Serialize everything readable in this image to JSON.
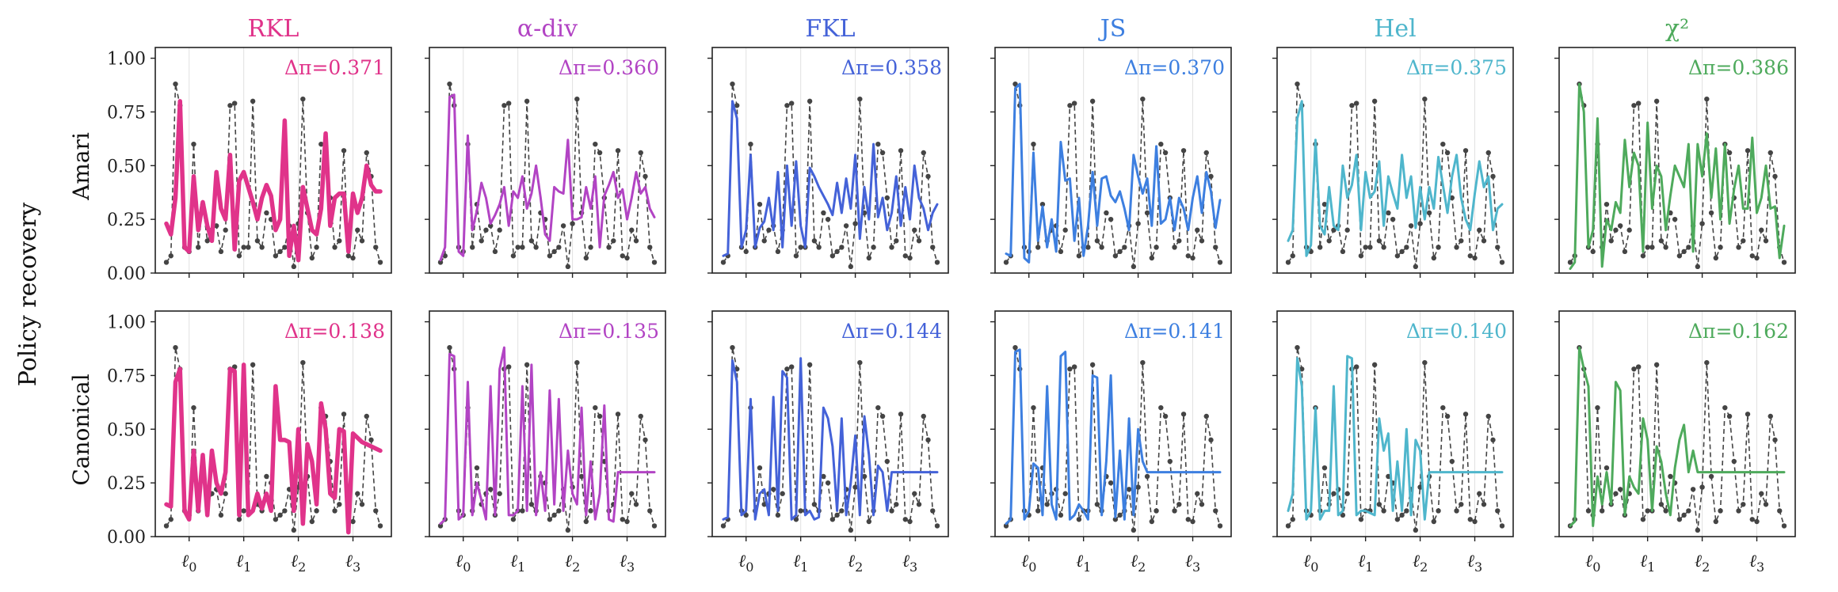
{
  "figure": {
    "ylabel": "Policy recovery",
    "row_labels": [
      "Amari",
      "Canonical"
    ],
    "yticks": [
      "0.00",
      "0.25",
      "0.50",
      "0.75",
      "1.00"
    ],
    "xticks": [
      {
        "base": "ℓ",
        "sub": "0"
      },
      {
        "base": "ℓ",
        "sub": "1"
      },
      {
        "base": "ℓ",
        "sub": "2"
      },
      {
        "base": "ℓ",
        "sub": "3"
      }
    ]
  },
  "columns": [
    {
      "title": "RKL",
      "color": "#e0338a",
      "width": 5.5
    },
    {
      "title": "α-div",
      "color": "#b244c4",
      "width": 3.0
    },
    {
      "title": "FKL",
      "color": "#4462d8",
      "width": 3.0
    },
    {
      "title": "JS",
      "color": "#3d7fe0",
      "width": 3.0
    },
    {
      "title": "Hel",
      "color": "#4fb6cc",
      "width": 3.0
    },
    {
      "title": "χ²",
      "color": "#4eaa5c",
      "width": 3.0
    }
  ],
  "chart_data": {
    "type": "line",
    "x": [
      0,
      1,
      2,
      3,
      4,
      5,
      6,
      7,
      8,
      9,
      10,
      11,
      12,
      13,
      14,
      15,
      16,
      17,
      18,
      19,
      20,
      21,
      22,
      23,
      24,
      25,
      26,
      27,
      28,
      29,
      30,
      31,
      32,
      33,
      34,
      35,
      36,
      37,
      38,
      39,
      40,
      41,
      42,
      43,
      44,
      45,
      46,
      47
    ],
    "x_tick_positions": [
      5,
      17,
      29,
      41
    ],
    "ylim": [
      0,
      1.05
    ],
    "reference": [
      0.05,
      0.08,
      0.88,
      0.78,
      0.12,
      0.1,
      0.6,
      0.12,
      0.32,
      0.15,
      0.2,
      0.22,
      0.1,
      0.2,
      0.78,
      0.79,
      0.08,
      0.12,
      0.12,
      0.8,
      0.15,
      0.12,
      0.28,
      0.25,
      0.08,
      0.1,
      0.12,
      0.22,
      0.03,
      0.23,
      0.81,
      0.28,
      0.07,
      0.12,
      0.6,
      0.56,
      0.35,
      0.12,
      0.15,
      0.57,
      0.08,
      0.07,
      0.2,
      0.15,
      0.56,
      0.45,
      0.12,
      0.05
    ],
    "panels": [
      {
        "row": "Amari",
        "column": "RKL",
        "delta": "Δπ=0.371",
        "values": [
          0.23,
          0.18,
          0.35,
          0.8,
          0.12,
          0.1,
          0.45,
          0.2,
          0.33,
          0.22,
          0.15,
          0.47,
          0.3,
          0.25,
          0.55,
          0.11,
          0.43,
          0.47,
          0.4,
          0.33,
          0.25,
          0.35,
          0.41,
          0.36,
          0.2,
          0.25,
          0.71,
          0.08,
          0.22,
          0.06,
          0.4,
          0.3,
          0.2,
          0.18,
          0.3,
          0.65,
          0.22,
          0.35,
          0.37,
          0.37,
          0.1,
          0.37,
          0.28,
          0.35,
          0.5,
          0.41,
          0.38,
          0.38
        ]
      },
      {
        "row": "Amari",
        "column": "α-div",
        "delta": "Δπ=0.360",
        "values": [
          0.06,
          0.12,
          0.82,
          0.83,
          0.1,
          0.08,
          0.64,
          0.2,
          0.29,
          0.42,
          0.35,
          0.23,
          0.27,
          0.32,
          0.4,
          0.22,
          0.38,
          0.35,
          0.45,
          0.3,
          0.37,
          0.5,
          0.35,
          0.18,
          0.15,
          0.4,
          0.38,
          0.37,
          0.62,
          0.25,
          0.25,
          0.26,
          0.4,
          0.3,
          0.45,
          0.12,
          0.36,
          0.41,
          0.47,
          0.35,
          0.39,
          0.25,
          0.35,
          0.47,
          0.37,
          0.4,
          0.3,
          0.26
        ]
      },
      {
        "row": "Amari",
        "column": "FKL",
        "delta": "Δπ=0.358",
        "values": [
          0.08,
          0.09,
          0.8,
          0.72,
          0.12,
          0.2,
          0.55,
          0.12,
          0.21,
          0.24,
          0.35,
          0.2,
          0.47,
          0.12,
          0.5,
          0.22,
          0.52,
          0.22,
          0.12,
          0.49,
          0.45,
          0.4,
          0.36,
          0.32,
          0.27,
          0.42,
          0.28,
          0.44,
          0.3,
          0.55,
          0.16,
          0.4,
          0.25,
          0.6,
          0.26,
          0.35,
          0.2,
          0.28,
          0.45,
          0.22,
          0.4,
          0.25,
          0.5,
          0.35,
          0.3,
          0.2,
          0.28,
          0.32
        ]
      },
      {
        "row": "Amari",
        "column": "JS",
        "delta": "Δπ=0.370",
        "values": [
          0.09,
          0.08,
          0.86,
          0.88,
          0.07,
          0.05,
          0.56,
          0.15,
          0.31,
          0.12,
          0.25,
          0.1,
          0.61,
          0.43,
          0.44,
          0.15,
          0.35,
          0.08,
          0.22,
          0.47,
          0.22,
          0.44,
          0.45,
          0.36,
          0.33,
          0.38,
          0.3,
          0.2,
          0.55,
          0.45,
          0.37,
          0.44,
          0.22,
          0.59,
          0.23,
          0.25,
          0.35,
          0.2,
          0.35,
          0.3,
          0.2,
          0.35,
          0.45,
          0.28,
          0.47,
          0.38,
          0.21,
          0.34
        ]
      },
      {
        "row": "Amari",
        "column": "Hel",
        "delta": "Δπ=0.375",
        "values": [
          0.15,
          0.2,
          0.72,
          0.8,
          0.08,
          0.13,
          0.62,
          0.22,
          0.18,
          0.4,
          0.22,
          0.2,
          0.5,
          0.35,
          0.41,
          0.55,
          0.2,
          0.47,
          0.35,
          0.38,
          0.52,
          0.22,
          0.45,
          0.37,
          0.3,
          0.55,
          0.35,
          0.45,
          0.21,
          0.4,
          0.25,
          0.4,
          0.3,
          0.54,
          0.41,
          0.28,
          0.45,
          0.55,
          0.35,
          0.25,
          0.2,
          0.37,
          0.52,
          0.4,
          0.45,
          0.2,
          0.3,
          0.32
        ]
      },
      {
        "row": "Amari",
        "column": "χ²",
        "delta": "Δπ=0.386",
        "values": [
          0.02,
          0.05,
          0.88,
          0.75,
          0.12,
          0.2,
          0.72,
          0.03,
          0.25,
          0.2,
          0.33,
          0.28,
          0.62,
          0.4,
          0.56,
          0.5,
          0.1,
          0.7,
          0.3,
          0.5,
          0.45,
          0.2,
          0.36,
          0.5,
          0.45,
          0.4,
          0.6,
          0.1,
          0.6,
          0.45,
          0.65,
          0.35,
          0.58,
          0.25,
          0.6,
          0.23,
          0.39,
          0.5,
          0.3,
          0.3,
          0.63,
          0.28,
          0.35,
          0.5,
          0.3,
          0.31,
          0.07,
          0.22
        ]
      },
      {
        "row": "Canonical",
        "column": "RKL",
        "delta": "Δπ=0.138",
        "values": [
          0.15,
          0.14,
          0.72,
          0.78,
          0.12,
          0.08,
          0.4,
          0.12,
          0.38,
          0.1,
          0.4,
          0.25,
          0.2,
          0.3,
          0.78,
          0.77,
          0.1,
          0.8,
          0.1,
          0.12,
          0.2,
          0.13,
          0.2,
          0.12,
          0.7,
          0.45,
          0.45,
          0.44,
          0.12,
          0.5,
          0.06,
          0.43,
          0.35,
          0.15,
          0.62,
          0.5,
          0.2,
          0.18,
          0.5,
          0.49,
          0.02,
          0.48,
          0.46,
          0.44,
          0.43,
          0.42,
          0.41,
          0.4
        ]
      },
      {
        "row": "Canonical",
        "column": "α-div",
        "delta": "Δπ=0.135",
        "values": [
          0.06,
          0.08,
          0.85,
          0.84,
          0.08,
          0.1,
          0.72,
          0.1,
          0.25,
          0.17,
          0.08,
          0.7,
          0.1,
          0.78,
          0.88,
          0.1,
          0.1,
          0.12,
          0.7,
          0.12,
          0.8,
          0.1,
          0.3,
          0.12,
          0.68,
          0.15,
          0.64,
          0.12,
          0.4,
          0.2,
          0.15,
          0.6,
          0.1,
          0.35,
          0.08,
          0.2,
          0.61,
          0.08,
          0.07,
          0.3,
          0.3,
          0.3,
          0.3,
          0.3,
          0.3,
          0.3,
          0.3,
          0.3
        ]
      },
      {
        "row": "Canonical",
        "column": "FKL",
        "delta": "Δπ=0.144",
        "values": [
          0.08,
          0.09,
          0.82,
          0.72,
          0.1,
          0.12,
          0.64,
          0.08,
          0.2,
          0.22,
          0.1,
          0.65,
          0.12,
          0.77,
          0.74,
          0.08,
          0.1,
          0.83,
          0.1,
          0.12,
          0.08,
          0.09,
          0.6,
          0.55,
          0.42,
          0.12,
          0.55,
          0.1,
          0.25,
          0.47,
          0.1,
          0.56,
          0.38,
          0.1,
          0.33,
          0.3,
          0.12,
          0.3,
          0.3,
          0.3,
          0.3,
          0.3,
          0.3,
          0.3,
          0.3,
          0.3,
          0.3,
          0.3
        ]
      },
      {
        "row": "Canonical",
        "column": "JS",
        "delta": "Δπ=0.141",
        "values": [
          0.06,
          0.08,
          0.86,
          0.87,
          0.08,
          0.12,
          0.34,
          0.32,
          0.1,
          0.7,
          0.15,
          0.08,
          0.84,
          0.86,
          0.08,
          0.1,
          0.15,
          0.12,
          0.08,
          0.75,
          0.74,
          0.1,
          0.35,
          0.75,
          0.09,
          0.4,
          0.08,
          0.55,
          0.1,
          0.5,
          0.35,
          0.3,
          0.3,
          0.3,
          0.3,
          0.3,
          0.3,
          0.3,
          0.3,
          0.3,
          0.3,
          0.3,
          0.3,
          0.3,
          0.3,
          0.3,
          0.3,
          0.3
        ]
      },
      {
        "row": "Canonical",
        "column": "Hel",
        "delta": "Δπ=0.140",
        "values": [
          0.12,
          0.2,
          0.83,
          0.7,
          0.08,
          0.12,
          0.6,
          0.08,
          0.12,
          0.12,
          0.7,
          0.1,
          0.12,
          0.84,
          0.83,
          0.1,
          0.12,
          0.12,
          0.11,
          0.1,
          0.55,
          0.4,
          0.48,
          0.12,
          0.35,
          0.12,
          0.5,
          0.1,
          0.45,
          0.4,
          0.08,
          0.3,
          0.3,
          0.3,
          0.3,
          0.3,
          0.3,
          0.3,
          0.3,
          0.3,
          0.3,
          0.3,
          0.3,
          0.3,
          0.3,
          0.3,
          0.3,
          0.3
        ]
      },
      {
        "row": "Canonical",
        "column": "χ²",
        "delta": "Δπ=0.162",
        "values": [
          0.05,
          0.07,
          0.88,
          0.78,
          0.7,
          0.05,
          0.28,
          0.15,
          0.3,
          0.15,
          0.72,
          0.68,
          0.1,
          0.28,
          0.23,
          0.2,
          0.55,
          0.45,
          0.12,
          0.42,
          0.35,
          0.2,
          0.1,
          0.32,
          0.45,
          0.52,
          0.3,
          0.4,
          0.3,
          0.3,
          0.3,
          0.3,
          0.3,
          0.3,
          0.3,
          0.3,
          0.3,
          0.3,
          0.3,
          0.3,
          0.3,
          0.3,
          0.3,
          0.3,
          0.3,
          0.3,
          0.3,
          0.3
        ]
      }
    ]
  }
}
